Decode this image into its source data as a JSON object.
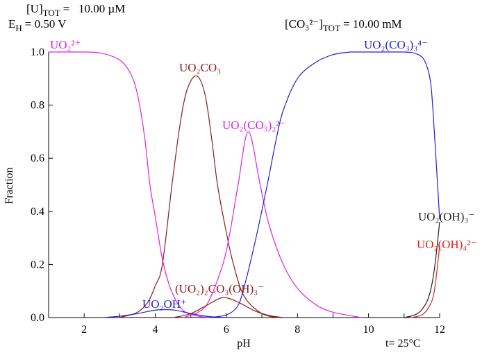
{
  "header": {
    "u_tot_label": "[U]",
    "u_tot_sub": "TOT",
    "u_tot_value": "=   10.00 µM",
    "eh_label": "E",
    "eh_sub": "H",
    "eh_value": "=   0.50 V",
    "co3_label": "[CO₃²⁻]",
    "co3_sub": "TOT",
    "co3_value": "=   10.00 mM"
  },
  "footer": {
    "temperature": "t= 25°C"
  },
  "chart_data": {
    "type": "line",
    "title": "",
    "xlabel": "pH",
    "ylabel": "Fraction",
    "xlim": [
      1,
      12
    ],
    "ylim": [
      0,
      1
    ],
    "xticks": [
      2,
      4,
      6,
      8,
      10,
      12
    ],
    "xtick_labels": [
      "2",
      "4",
      "6",
      "8",
      "10",
      "12"
    ],
    "yticks": [
      0,
      0.2,
      0.4,
      0.6,
      0.8,
      1.0
    ],
    "ytick_labels": [
      "0.0",
      "0.2",
      "0.4",
      "0.6",
      "0.8",
      "1.0"
    ],
    "grid": false,
    "series": [
      {
        "name": "UO₂²⁺",
        "color": "#e020e0",
        "x": [
          1,
          2,
          2.5,
          3,
          3.3,
          3.5,
          3.7,
          3.85,
          4,
          4.2,
          4.4,
          4.6,
          4.8,
          5.1,
          5.5
        ],
        "y": [
          1,
          1,
          0.995,
          0.97,
          0.92,
          0.84,
          0.68,
          0.5,
          0.38,
          0.22,
          0.12,
          0.06,
          0.025,
          0.008,
          0
        ]
      },
      {
        "name": "UO₂CO₃",
        "color": "#8b1a1a",
        "x": [
          3,
          3.5,
          3.8,
          4,
          4.2,
          4.47,
          4.7,
          4.9,
          5.16,
          5.4,
          5.6,
          5.75,
          6,
          6.2,
          6.5,
          7,
          7.5
        ],
        "y": [
          0,
          0.02,
          0.06,
          0.12,
          0.2,
          0.5,
          0.73,
          0.86,
          0.91,
          0.84,
          0.66,
          0.5,
          0.32,
          0.2,
          0.08,
          0.015,
          0
        ]
      },
      {
        "name": "UO₂(CO₃)₂²⁻",
        "color": "#e020e0",
        "x": [
          4.8,
          5.2,
          5.5,
          5.9,
          6.1,
          6.33,
          6.62,
          6.95,
          7.2,
          7.6,
          8,
          8.5,
          9,
          9.8
        ],
        "y": [
          0,
          0.02,
          0.06,
          0.2,
          0.32,
          0.5,
          0.7,
          0.5,
          0.35,
          0.2,
          0.11,
          0.05,
          0.02,
          0
        ]
      },
      {
        "name": "UO₂(CO₃)₃⁴⁻",
        "color": "#2020d0",
        "x": [
          5.5,
          6,
          6.3,
          6.47,
          6.8,
          7.15,
          7.4,
          7.6,
          8,
          8.5,
          9,
          9.5,
          10,
          11,
          11.4,
          11.6,
          11.75,
          11.85,
          11.95,
          12
        ],
        "y": [
          0,
          0.01,
          0.04,
          0.1,
          0.28,
          0.5,
          0.67,
          0.78,
          0.9,
          0.96,
          0.99,
          1,
          1,
          1,
          0.99,
          0.96,
          0.88,
          0.7,
          0.48,
          0.37
        ]
      },
      {
        "name": "UO₂OH⁺",
        "color": "#2020d0",
        "x": [
          2.5,
          3,
          3.5,
          4,
          4.3,
          4.6,
          5,
          5.5,
          6
        ],
        "y": [
          0,
          0.005,
          0.015,
          0.028,
          0.03,
          0.027,
          0.015,
          0.004,
          0
        ]
      },
      {
        "name": "(UO₂)₂CO₃(OH)₃⁻",
        "color": "#8b1a1a",
        "x": [
          4.5,
          5,
          5.5,
          5.9,
          6.3,
          6.8,
          7.2,
          7.6
        ],
        "y": [
          0,
          0.015,
          0.05,
          0.075,
          0.06,
          0.025,
          0.008,
          0
        ]
      },
      {
        "name": "UO₂(OH)₃⁻",
        "color": "#202020",
        "x": [
          11,
          11.3,
          11.5,
          11.7,
          11.85,
          12
        ],
        "y": [
          0,
          0.01,
          0.03,
          0.08,
          0.18,
          0.36
        ]
      },
      {
        "name": "UO₂(OH)₄²⁻",
        "color": "#e02020",
        "x": [
          11.2,
          11.5,
          11.7,
          11.85,
          12
        ],
        "y": [
          0,
          0.01,
          0.04,
          0.1,
          0.27
        ]
      }
    ]
  }
}
